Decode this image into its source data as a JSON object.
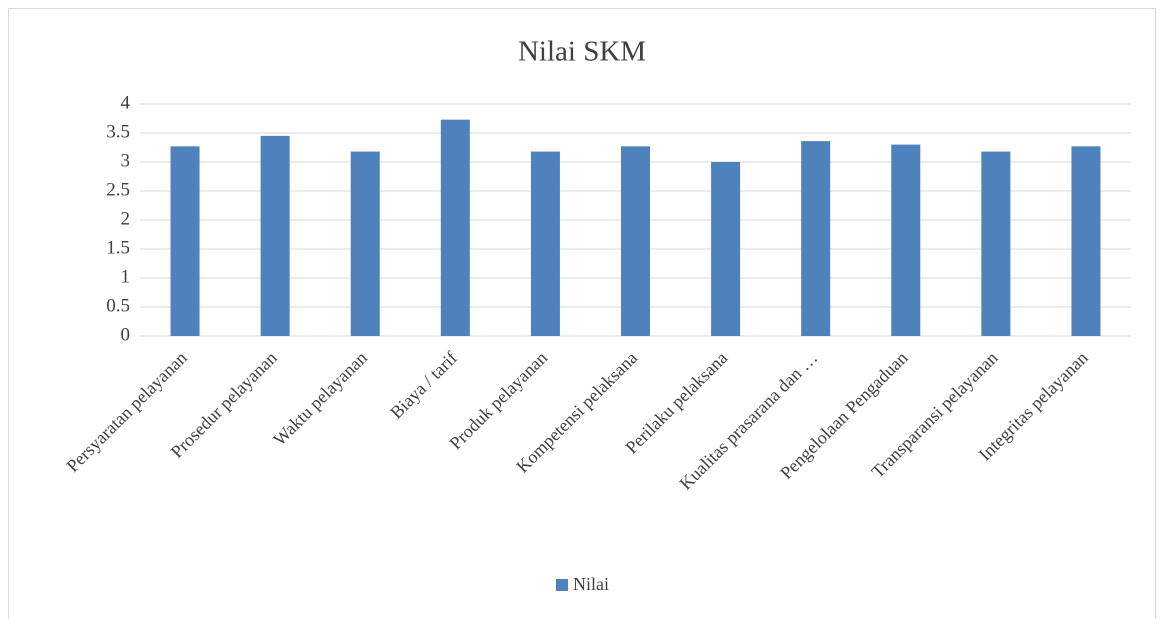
{
  "chart_data": {
    "type": "bar",
    "title": "Nilai SKM",
    "categories": [
      "Persyaratan pelayanan",
      "Prosedur pelayanan",
      "Waktu pelayanan",
      "Biaya / tarif",
      "Produk pelayanan",
      "Kompetensi pelaksana",
      "Perilaku pelaksana",
      "Kualitas prasarana dan …",
      "Pengelolaan Pengaduan",
      "Transparansi pelayanan",
      "Integritas pelayanan"
    ],
    "series": [
      {
        "name": "Nilai",
        "color": "#4f81bd",
        "values": [
          3.27,
          3.45,
          3.18,
          3.73,
          3.18,
          3.27,
          3.0,
          3.36,
          3.3,
          3.18,
          3.27
        ]
      }
    ],
    "ylim": [
      0,
      4
    ],
    "yticks": [
      0,
      0.5,
      1,
      1.5,
      2,
      2.5,
      3,
      3.5,
      4
    ],
    "grid": true,
    "legend": "bottom"
  }
}
